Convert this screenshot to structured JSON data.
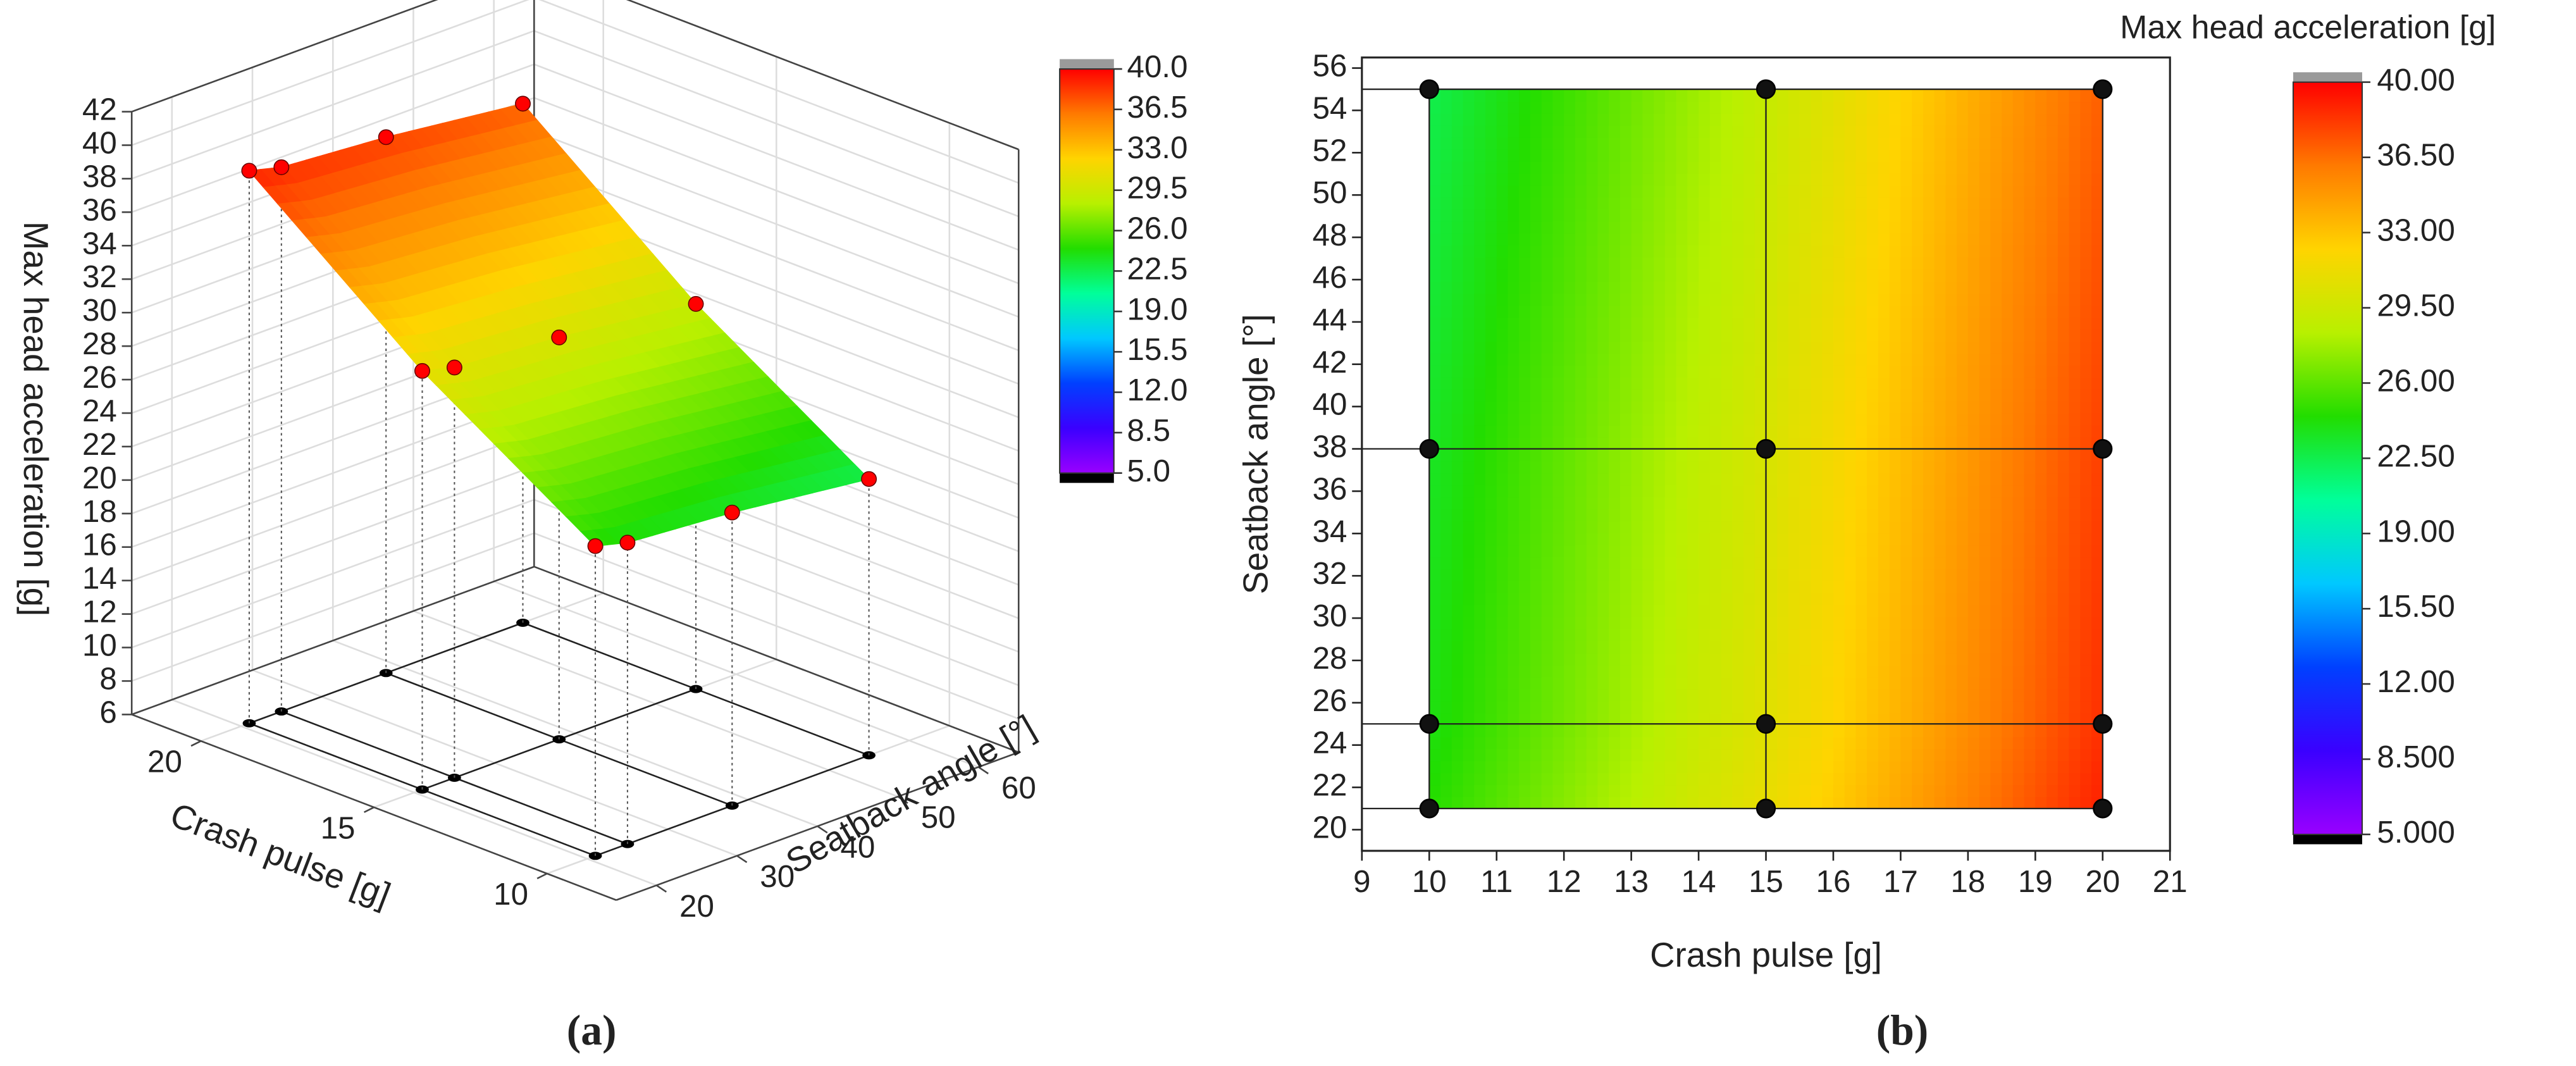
{
  "chart_data": [
    {
      "type": "surface3d",
      "caption": "(a)",
      "xlabel": "Crash pulse [g]",
      "ylabel": "Seatback angle [°]",
      "zlabel": "Max head acceleration [g]",
      "x": [
        10,
        10,
        10,
        10,
        15,
        15,
        15,
        15,
        20,
        20,
        20,
        20
      ],
      "y": [
        21,
        25,
        38,
        55,
        21,
        25,
        38,
        55,
        21,
        25,
        38,
        55
      ],
      "z": [
        24.5,
        24,
        23.5,
        22.5,
        31,
        30.5,
        30,
        29,
        39,
        38.5,
        38,
        37
      ],
      "xlim": [
        8,
        22
      ],
      "xticks": [
        20,
        15,
        10
      ],
      "ylim": [
        15,
        65
      ],
      "yticks": [
        20,
        30,
        40,
        50,
        60
      ],
      "zlim": [
        6,
        42
      ],
      "zticks": [
        6,
        8,
        10,
        12,
        14,
        16,
        18,
        20,
        22,
        24,
        26,
        28,
        30,
        32,
        34,
        36,
        38,
        40,
        42
      ],
      "point_color": "#ff0000",
      "colorbar": {
        "clim": [
          5,
          40
        ],
        "ticks": [
          {
            "value": 40,
            "label": "40.0"
          },
          36.5,
          {
            "value": 33,
            "label": "33.0"
          },
          29.5,
          {
            "value": 26,
            "label": "26.0"
          },
          22.5,
          {
            "value": 19,
            "label": "19.0"
          },
          15.5,
          {
            "value": 12,
            "label": "12.0"
          },
          8.5,
          {
            "value": 5,
            "label": "5.0"
          }
        ],
        "colormap": [
          "#9900ff",
          "#3a00ff",
          "#0040ff",
          "#00c8ff",
          "#00ff9a",
          "#22dd00",
          "#b8f000",
          "#ffd400",
          "#ff7a00",
          "#ff0000"
        ],
        "over_color": "#9a9a9a",
        "under_color": "#000000"
      }
    },
    {
      "type": "contour",
      "caption": "(b)",
      "xlabel": "Crash pulse [g]",
      "ylabel": "Seatback angle [°]",
      "x": [
        10,
        10,
        10,
        10,
        15,
        15,
        15,
        15,
        20,
        20,
        20,
        20
      ],
      "y": [
        21,
        25,
        38,
        55,
        21,
        25,
        38,
        55,
        21,
        25,
        38,
        55
      ],
      "z": [
        24.5,
        24,
        23.5,
        22.5,
        31,
        30.5,
        30,
        29,
        39,
        38.5,
        38,
        37
      ],
      "xlim": [
        9,
        21
      ],
      "xticks": [
        9,
        10,
        11,
        12,
        13,
        14,
        15,
        16,
        17,
        18,
        19,
        20,
        21
      ],
      "ylim": [
        19,
        56.5
      ],
      "yticks": [
        20,
        22,
        24,
        26,
        28,
        30,
        32,
        34,
        36,
        38,
        40,
        42,
        44,
        46,
        48,
        50,
        52,
        54,
        56
      ],
      "colorbar": {
        "title": "Max head acceleration [g]",
        "clim": [
          5,
          40
        ],
        "ticks": [
          {
            "value": 40,
            "label": "40.00"
          },
          {
            "value": 36.5,
            "label": "36.50"
          },
          {
            "value": 33,
            "label": "33.00"
          },
          {
            "value": 29.5,
            "label": "29.50"
          },
          {
            "value": 26,
            "label": "26.00"
          },
          {
            "value": 22.5,
            "label": "22.50"
          },
          {
            "value": 19,
            "label": "19.00"
          },
          {
            "value": 15.5,
            "label": "15.50"
          },
          {
            "value": 12,
            "label": "12.00"
          },
          {
            "value": 8.5,
            "label": "8.500"
          },
          {
            "value": 5,
            "label": "5.000"
          }
        ],
        "colormap": [
          "#9900ff",
          "#3a00ff",
          "#0040ff",
          "#00c8ff",
          "#00ff9a",
          "#22dd00",
          "#b8f000",
          "#ffd400",
          "#ff7a00",
          "#ff0000"
        ],
        "over_color": "#9a9a9a",
        "under_color": "#000000"
      }
    }
  ]
}
